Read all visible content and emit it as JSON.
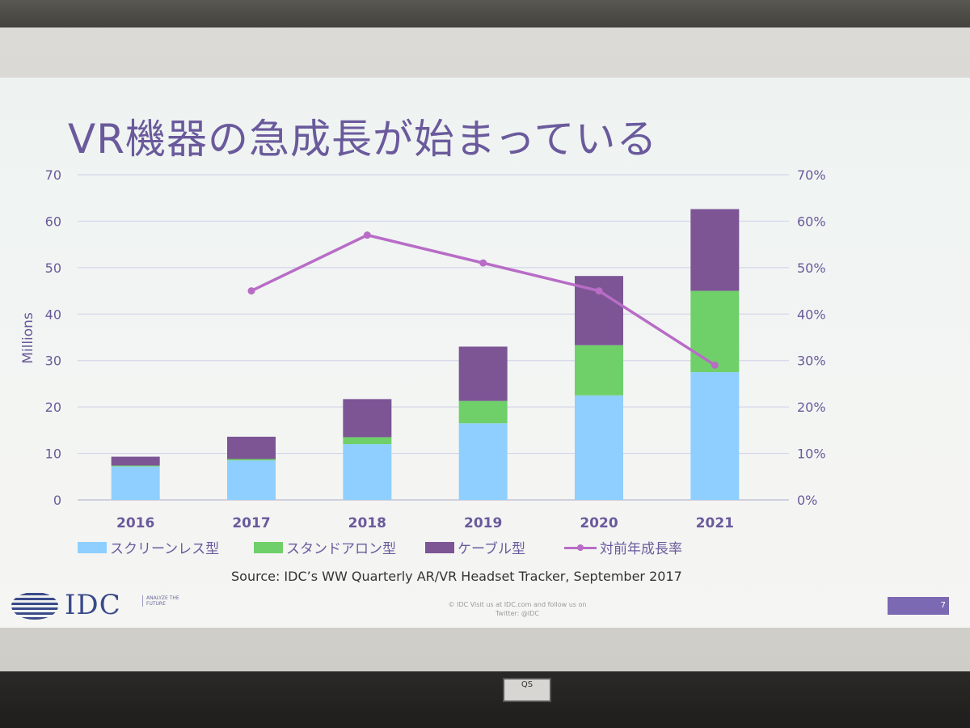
{
  "slide": {
    "title": "VR機器の急成長が始まっている",
    "source": "Source:  IDC’s WW Quarterly AR/VR Headset Tracker, September 2017",
    "logo_text": "IDC",
    "logo_tagline": "ANALYZE THE FUTURE",
    "footer_line1": "© IDC   Visit us at IDC.com and follow us on",
    "footer_line2": "Twitter: @IDC",
    "page_number": "7",
    "projector_label": "QS"
  },
  "chart_data": {
    "type": "bar",
    "stacked": true,
    "categories": [
      "2016",
      "2017",
      "2018",
      "2019",
      "2020",
      "2021"
    ],
    "series": [
      {
        "name": "スクリーンレス型",
        "color": "#8fcfff",
        "values": [
          7.2,
          8.5,
          12.0,
          16.5,
          22.5,
          27.5
        ]
      },
      {
        "name": "スタンドアロン型",
        "color": "#6fd06a",
        "values": [
          0.2,
          0.3,
          1.5,
          4.8,
          10.8,
          17.5
        ]
      },
      {
        "name": "ケーブル型",
        "color": "#7d5595",
        "values": [
          1.9,
          4.8,
          8.2,
          11.7,
          14.9,
          17.6
        ]
      }
    ],
    "line_series": {
      "name": "対前年成長率",
      "color": "#b86cc6",
      "axis": "right",
      "values": [
        null,
        0.45,
        0.57,
        0.51,
        0.45,
        0.29
      ]
    },
    "ylabel": "Millions",
    "ylim": [
      0,
      70
    ],
    "yticks": [
      "0",
      "10",
      "20",
      "30",
      "40",
      "50",
      "60",
      "70"
    ],
    "y2lim": [
      0,
      0.7
    ],
    "y2ticks": [
      "0%",
      "10%",
      "20%",
      "30%",
      "40%",
      "50%",
      "60%",
      "70%"
    ],
    "grid": true,
    "legend_position": "bottom"
  }
}
